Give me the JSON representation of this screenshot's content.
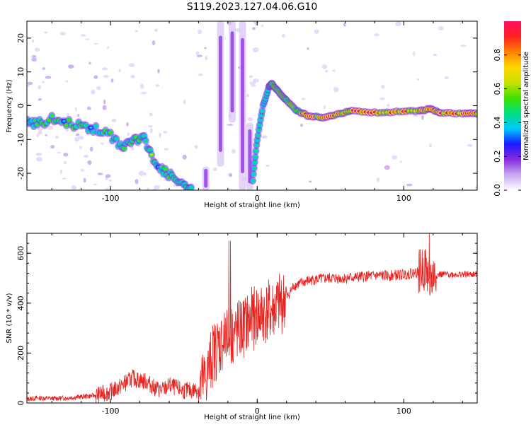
{
  "title": "S119.2023.127.04.06.G10",
  "charts": [
    {
      "type": "heatmap",
      "name": "spectrogram",
      "xlabel": "Height of straight line (km)",
      "ylabel": "Frequency (Hz)",
      "xlim": [
        -157,
        150
      ],
      "ylim": [
        -25,
        25
      ],
      "xticks": [
        -100,
        0,
        100
      ],
      "yticks": [
        -20,
        -10,
        0,
        10,
        20
      ],
      "colorbar": {
        "label": "Normalized spectral amplitude",
        "range": [
          0,
          1
        ],
        "ticks": [
          "0.0",
          "0.2",
          "0.4",
          "0.6",
          "0.8"
        ],
        "tick_values": [
          0.0,
          0.2,
          0.4,
          0.6,
          0.8
        ],
        "colors": [
          "#ffffff",
          "#c8a8f0",
          "#8a2be2",
          "#1a1aff",
          "#00c8ff",
          "#00e080",
          "#40e000",
          "#c8e000",
          "#ffd700",
          "#ff8000",
          "#ff2020",
          "#ff1060"
        ]
      },
      "ridge": [
        {
          "x": -157,
          "y": -5.0
        },
        {
          "x": -150,
          "y": -5.5
        },
        {
          "x": -140,
          "y": -4.0
        },
        {
          "x": -130,
          "y": -5.0
        },
        {
          "x": -120,
          "y": -6.0
        },
        {
          "x": -110,
          "y": -7.0
        },
        {
          "x": -100,
          "y": -9.0
        },
        {
          "x": -92,
          "y": -12.0
        },
        {
          "x": -85,
          "y": -10.5
        },
        {
          "x": -78,
          "y": -9.0
        },
        {
          "x": -72,
          "y": -15.0
        },
        {
          "x": -65,
          "y": -19.0
        },
        {
          "x": -58,
          "y": -21.0
        },
        {
          "x": -50,
          "y": -24.0
        },
        {
          "x": -45,
          "y": -25.0
        }
      ],
      "ridge_right": [
        {
          "x": -3,
          "y": -22.0
        },
        {
          "x": 0,
          "y": -10.0
        },
        {
          "x": 4,
          "y": 0.0
        },
        {
          "x": 8,
          "y": 5.5
        },
        {
          "x": 10,
          "y": 6.5
        },
        {
          "x": 15,
          "y": 4.0
        },
        {
          "x": 20,
          "y": 1.5
        },
        {
          "x": 27,
          "y": -1.5
        },
        {
          "x": 35,
          "y": -3.0
        },
        {
          "x": 45,
          "y": -3.5
        },
        {
          "x": 55,
          "y": -2.5
        },
        {
          "x": 65,
          "y": -1.5
        },
        {
          "x": 80,
          "y": -2.0
        },
        {
          "x": 95,
          "y": -1.8
        },
        {
          "x": 110,
          "y": -1.5
        },
        {
          "x": 118,
          "y": -1.0
        },
        {
          "x": 125,
          "y": -2.0
        },
        {
          "x": 140,
          "y": -2.3
        },
        {
          "x": 150,
          "y": -2.3
        }
      ],
      "vertical_streaks": [
        {
          "x": -35,
          "y": [
            -25,
            -18
          ]
        },
        {
          "x": -25,
          "y": [
            -18,
            25
          ]
        },
        {
          "x": -17,
          "y": [
            -5,
            25
          ]
        },
        {
          "x": -10,
          "y": [
            -25,
            25
          ]
        },
        {
          "x": -5,
          "y": [
            -25,
            -5
          ]
        }
      ]
    },
    {
      "type": "line",
      "name": "snr",
      "xlabel": "Height of straight line (km)",
      "ylabel": "SNR (10 * v/v)",
      "xlim": [
        -157,
        150
      ],
      "ylim": [
        0,
        680
      ],
      "xticks": [
        -100,
        0,
        100
      ],
      "yticks": [
        0,
        200,
        400,
        600
      ],
      "line_color": "#e8221e",
      "series": [
        {
          "x": [
            -157,
            -150,
            -140,
            -130,
            -120,
            -110,
            -100,
            -95,
            -90,
            -85,
            -80,
            -75,
            -70,
            -65,
            -60,
            -55,
            -50,
            -45,
            -40,
            -35,
            -30,
            -25,
            -20,
            -15,
            -10,
            -5,
            0,
            5,
            10,
            15,
            20,
            25,
            30,
            35,
            40,
            50,
            60,
            70,
            80,
            90,
            100,
            105,
            110,
            115,
            118,
            120,
            125,
            130,
            140,
            150
          ],
          "y": [
            15,
            20,
            18,
            20,
            25,
            30,
            45,
            60,
            80,
            100,
            90,
            85,
            60,
            50,
            70,
            60,
            50,
            50,
            55,
            100,
            200,
            240,
            260,
            280,
            300,
            330,
            350,
            360,
            370,
            390,
            420,
            470,
            480,
            490,
            495,
            500,
            500,
            505,
            510,
            510,
            515,
            520,
            525,
            540,
            480,
            510,
            515,
            515,
            515,
            515
          ]
        }
      ]
    }
  ]
}
